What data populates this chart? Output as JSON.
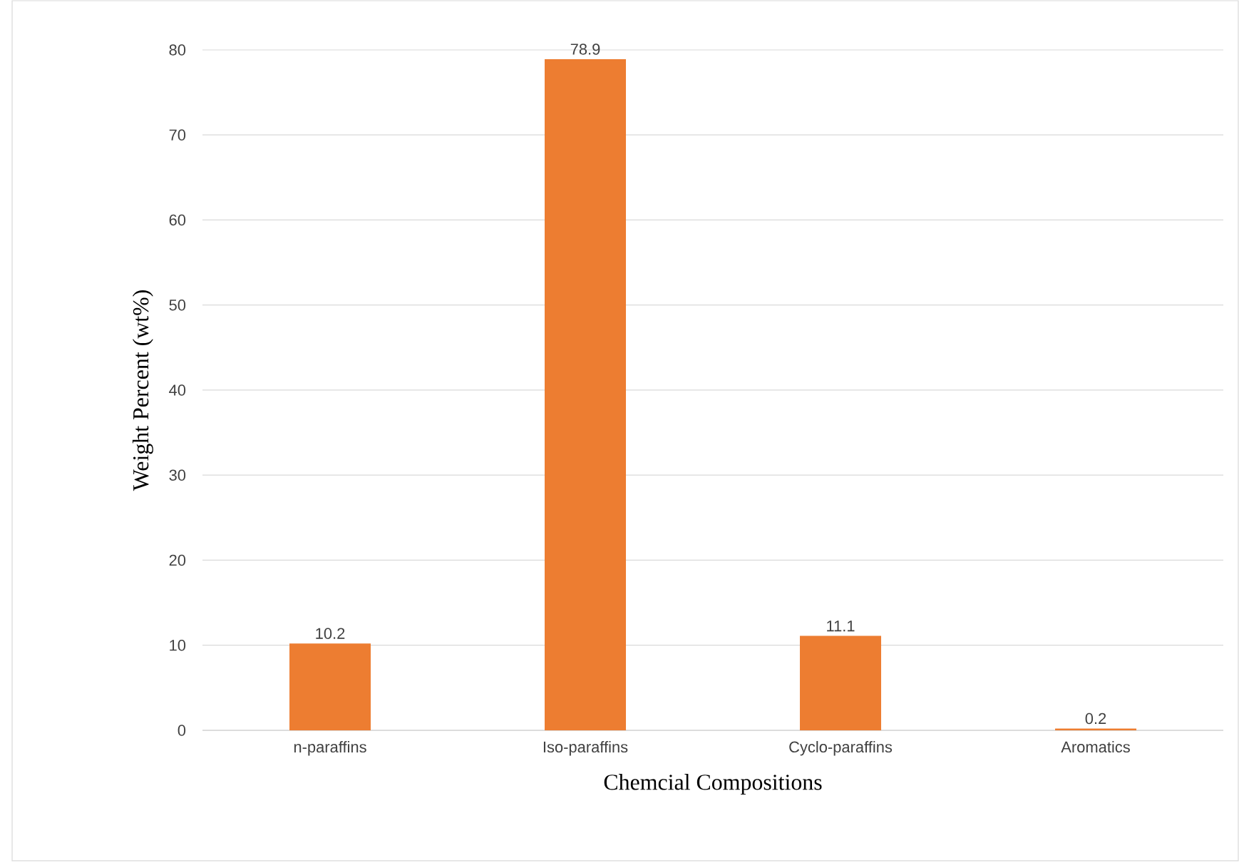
{
  "chart_data": {
    "type": "bar",
    "xlabel": "Chemcial Compositions",
    "ylabel": "Weight Percent (wt%)",
    "categories": [
      "n-paraffins",
      "Iso-paraffins",
      "Cyclo-paraffins",
      "Aromatics"
    ],
    "values": [
      10.2,
      78.9,
      11.1,
      0.2
    ],
    "color": "#ed7d31",
    "ylim": [
      0,
      80
    ],
    "yticks": [
      0,
      10,
      20,
      30,
      40,
      50,
      60,
      70,
      80
    ],
    "grid": "y",
    "data_labels": true
  }
}
